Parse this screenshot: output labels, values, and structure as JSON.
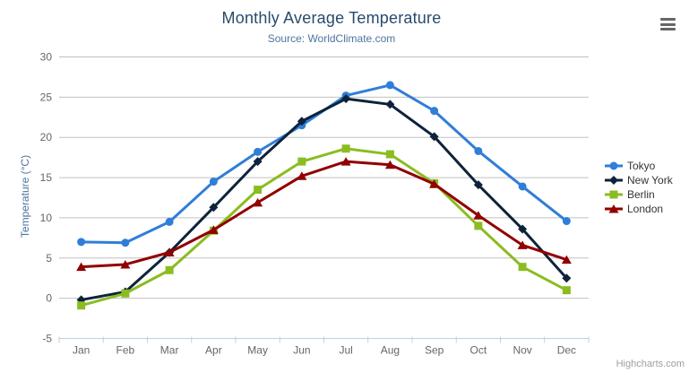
{
  "header": {
    "title": "Monthly Average Temperature",
    "subtitle": "Source: WorldClimate.com"
  },
  "chart_data": {
    "type": "line",
    "title": "Monthly Average Temperature",
    "subtitle": "Source: WorldClimate.com",
    "categories": [
      "Jan",
      "Feb",
      "Mar",
      "Apr",
      "May",
      "Jun",
      "Jul",
      "Aug",
      "Sep",
      "Oct",
      "Nov",
      "Dec"
    ],
    "series": [
      {
        "name": "Tokyo",
        "color": "#2f7ed8",
        "marker": "circle",
        "values": [
          7.0,
          6.9,
          9.5,
          14.5,
          18.2,
          21.5,
          25.2,
          26.5,
          23.3,
          18.3,
          13.9,
          9.6
        ]
      },
      {
        "name": "New York",
        "color": "#0d233a",
        "marker": "diamond",
        "values": [
          -0.2,
          0.8,
          5.7,
          11.3,
          17.0,
          22.0,
          24.8,
          24.1,
          20.1,
          14.1,
          8.6,
          2.5
        ]
      },
      {
        "name": "Berlin",
        "color": "#8bbc21",
        "marker": "square",
        "values": [
          -0.9,
          0.6,
          3.5,
          8.4,
          13.5,
          17.0,
          18.6,
          17.9,
          14.3,
          9.0,
          3.9,
          1.0
        ]
      },
      {
        "name": "London",
        "color": "#910000",
        "marker": "triangle",
        "values": [
          3.9,
          4.2,
          5.7,
          8.5,
          11.9,
          15.2,
          17.0,
          16.6,
          14.2,
          10.3,
          6.6,
          4.8
        ]
      }
    ],
    "xlabel": "",
    "ylabel": "Temperature (°C)",
    "ylim": [
      -5,
      30
    ],
    "yticks": [
      -5,
      0,
      5,
      10,
      15,
      20,
      25,
      30
    ],
    "grid": true,
    "legend_position": "right"
  },
  "credits": {
    "label": "Highcharts.com"
  },
  "colors": {
    "title": "#274b6d",
    "subtitle": "#4d759e",
    "axis_title": "#4d759e",
    "axis_label": "#666666",
    "grid_line": "#c0c0c0",
    "axis_line": "#c0d0e0",
    "legend_text": "#333333",
    "credits_text": "#a0a0a0",
    "menu_icon": "#666666",
    "background": "#ffffff"
  }
}
